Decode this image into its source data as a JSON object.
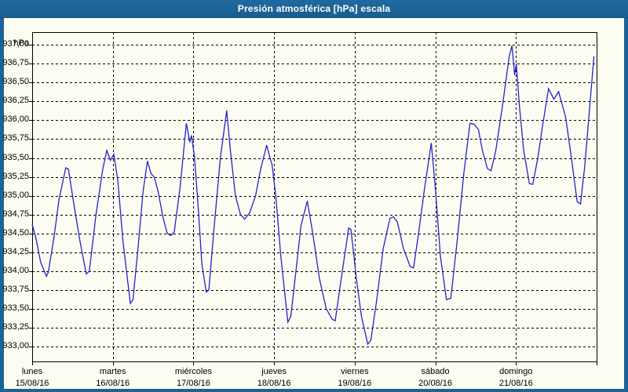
{
  "window": {
    "title": "Presión atmosférica [hPa] escala",
    "titlebar_color": "#1c6396",
    "border_color": "#1c6396",
    "background_color": "#fcfcf2"
  },
  "chart_data": {
    "type": "line",
    "title": "Presión atmosférica [hPa] escala",
    "ylabel": "hPa",
    "xlabel": "",
    "grid": "dashed",
    "legend": "none",
    "line_color": "#2323cc",
    "ylim": [
      932.8,
      937.17
    ],
    "xlim_hours": [
      0,
      168
    ],
    "y_ticks": [
      {
        "value": 937.0,
        "label": "937,00"
      },
      {
        "value": 936.75,
        "label": "936,75"
      },
      {
        "value": 936.5,
        "label": "936,50"
      },
      {
        "value": 936.25,
        "label": "936,25"
      },
      {
        "value": 936.0,
        "label": "936,00"
      },
      {
        "value": 935.75,
        "label": "935,75"
      },
      {
        "value": 935.5,
        "label": "935,50"
      },
      {
        "value": 935.25,
        "label": "935,25"
      },
      {
        "value": 935.0,
        "label": "935,00"
      },
      {
        "value": 934.75,
        "label": "934,75"
      },
      {
        "value": 934.5,
        "label": "934,50"
      },
      {
        "value": 934.25,
        "label": "934,25"
      },
      {
        "value": 934.0,
        "label": "934,00"
      },
      {
        "value": 933.75,
        "label": "933,75"
      },
      {
        "value": 933.5,
        "label": "933,50"
      },
      {
        "value": 933.25,
        "label": "933,25"
      },
      {
        "value": 933.0,
        "label": "933,00"
      }
    ],
    "x_ticks": [
      {
        "hour": 0,
        "day": "lunes",
        "date": "15/08/16"
      },
      {
        "hour": 24,
        "day": "martes",
        "date": "16/08/16"
      },
      {
        "hour": 48,
        "day": "miércoles",
        "date": "17/08/16"
      },
      {
        "hour": 72,
        "day": "jueves",
        "date": "18/08/16"
      },
      {
        "hour": 96,
        "day": "viernes",
        "date": "19/08/16"
      },
      {
        "hour": 120,
        "day": "sábado",
        "date": "20/08/16"
      },
      {
        "hour": 144,
        "day": "domingo",
        "date": "21/08/16"
      }
    ],
    "series": [
      {
        "name": "Presión atmosférica",
        "color": "#2323cc",
        "points": [
          [
            0,
            934.62
          ],
          [
            1.2,
            934.42
          ],
          [
            2.5,
            934.12
          ],
          [
            4.2,
            933.93
          ],
          [
            4.8,
            933.98
          ],
          [
            6.5,
            934.45
          ],
          [
            8,
            934.95
          ],
          [
            10,
            935.37
          ],
          [
            10.8,
            935.35
          ],
          [
            12,
            935.0
          ],
          [
            14,
            934.45
          ],
          [
            16.1,
            933.96
          ],
          [
            17,
            934.0
          ],
          [
            19,
            934.75
          ],
          [
            21,
            935.35
          ],
          [
            22.2,
            935.6
          ],
          [
            23.3,
            935.47
          ],
          [
            24.3,
            935.55
          ],
          [
            25.5,
            935.2
          ],
          [
            27,
            934.4
          ],
          [
            29.2,
            933.57
          ],
          [
            30,
            933.62
          ],
          [
            31.5,
            934.3
          ],
          [
            33,
            935.05
          ],
          [
            34.3,
            935.46
          ],
          [
            35.3,
            935.3
          ],
          [
            36.4,
            935.24
          ],
          [
            37.5,
            935.05
          ],
          [
            39,
            934.7
          ],
          [
            40.2,
            934.5
          ],
          [
            41.3,
            934.47
          ],
          [
            42.3,
            934.52
          ],
          [
            44,
            935.1
          ],
          [
            45.9,
            935.96
          ],
          [
            46.9,
            935.71
          ],
          [
            47.4,
            935.8
          ],
          [
            48.3,
            935.52
          ],
          [
            49.5,
            934.8
          ],
          [
            50.5,
            934.1
          ],
          [
            51.8,
            933.72
          ],
          [
            52.6,
            933.75
          ],
          [
            54,
            934.5
          ],
          [
            56,
            935.5
          ],
          [
            57.9,
            936.13
          ],
          [
            59,
            935.6
          ],
          [
            60.5,
            935.0
          ],
          [
            62,
            934.75
          ],
          [
            63.2,
            934.69
          ],
          [
            64.7,
            934.77
          ],
          [
            66.5,
            935.0
          ],
          [
            68,
            935.35
          ],
          [
            69.8,
            935.67
          ],
          [
            70.8,
            935.5
          ],
          [
            71.4,
            935.41
          ],
          [
            72.5,
            935.0
          ],
          [
            74,
            934.2
          ],
          [
            76.1,
            933.32
          ],
          [
            77,
            933.4
          ],
          [
            78.5,
            934.0
          ],
          [
            80,
            934.6
          ],
          [
            81.9,
            934.93
          ],
          [
            83.5,
            934.5
          ],
          [
            85.5,
            933.9
          ],
          [
            87.5,
            933.5
          ],
          [
            89.3,
            933.36
          ],
          [
            90.2,
            933.34
          ],
          [
            92,
            933.9
          ],
          [
            94.2,
            934.57
          ],
          [
            94.9,
            934.55
          ],
          [
            96.5,
            933.9
          ],
          [
            98,
            933.4
          ],
          [
            99.9,
            933.03
          ],
          [
            100.8,
            933.08
          ],
          [
            102.5,
            933.6
          ],
          [
            104.5,
            934.3
          ],
          [
            106.5,
            934.7
          ],
          [
            107.5,
            934.72
          ],
          [
            108.7,
            934.65
          ],
          [
            110.5,
            934.3
          ],
          [
            112.5,
            934.06
          ],
          [
            113.5,
            934.04
          ],
          [
            115,
            934.5
          ],
          [
            116.8,
            935.1
          ],
          [
            118.8,
            935.7
          ],
          [
            120,
            935.1
          ],
          [
            121.5,
            934.2
          ],
          [
            123.3,
            933.62
          ],
          [
            124.6,
            933.64
          ],
          [
            126.5,
            934.4
          ],
          [
            128.5,
            935.3
          ],
          [
            130.3,
            935.96
          ],
          [
            131.5,
            935.95
          ],
          [
            132.8,
            935.88
          ],
          [
            134,
            935.6
          ],
          [
            135.5,
            935.36
          ],
          [
            136.6,
            935.33
          ],
          [
            138,
            935.6
          ],
          [
            140,
            936.2
          ],
          [
            142,
            936.85
          ],
          [
            142.8,
            936.99
          ],
          [
            143.6,
            936.6
          ],
          [
            144.1,
            936.75
          ],
          [
            145,
            936.2
          ],
          [
            146.3,
            935.6
          ],
          [
            148,
            935.16
          ],
          [
            149,
            935.15
          ],
          [
            150.5,
            935.5
          ],
          [
            152,
            935.95
          ],
          [
            153.7,
            936.42
          ],
          [
            155.3,
            936.28
          ],
          [
            156.7,
            936.38
          ],
          [
            158.8,
            936.04
          ],
          [
            160.5,
            935.5
          ],
          [
            162.2,
            934.92
          ],
          [
            163.2,
            934.89
          ],
          [
            164.5,
            935.4
          ],
          [
            166,
            936.2
          ],
          [
            167.2,
            936.85
          ]
        ]
      }
    ]
  }
}
